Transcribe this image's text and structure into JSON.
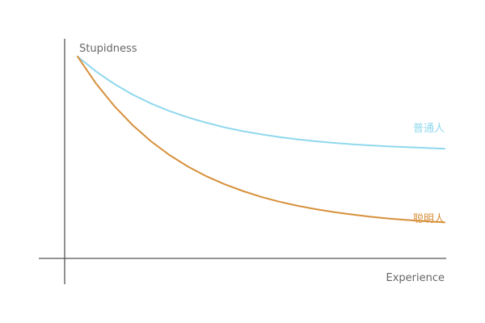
{
  "chart_data": {
    "type": "line",
    "title": "",
    "xlabel": "Experience",
    "ylabel": "Stupidness",
    "xlim": [
      0,
      10
    ],
    "ylim": [
      0,
      10
    ],
    "grid": false,
    "x": [
      0,
      0.5,
      1,
      1.5,
      2,
      2.5,
      3,
      3.5,
      4,
      4.5,
      5,
      5.5,
      6,
      6.5,
      7,
      7.5,
      8,
      8.5,
      9,
      9.5,
      10
    ],
    "series": [
      {
        "name": "普通人",
        "color": "#8fd8ee",
        "values": [
          10,
          9.17,
          8.47,
          7.88,
          7.38,
          6.96,
          6.61,
          6.31,
          6.05,
          5.84,
          5.66,
          5.51,
          5.38,
          5.27,
          5.18,
          5.1,
          5.04,
          4.98,
          4.94,
          4.9,
          4.86
        ]
      },
      {
        "name": "聪明人",
        "color": "#d7903b",
        "values": [
          10,
          8.5,
          7.24,
          6.17,
          5.27,
          4.51,
          3.87,
          3.33,
          2.88,
          2.5,
          2.17,
          1.9,
          1.67,
          1.48,
          1.32,
          1.18,
          1.06,
          0.96,
          0.88,
          0.81,
          0.75
        ]
      }
    ]
  }
}
